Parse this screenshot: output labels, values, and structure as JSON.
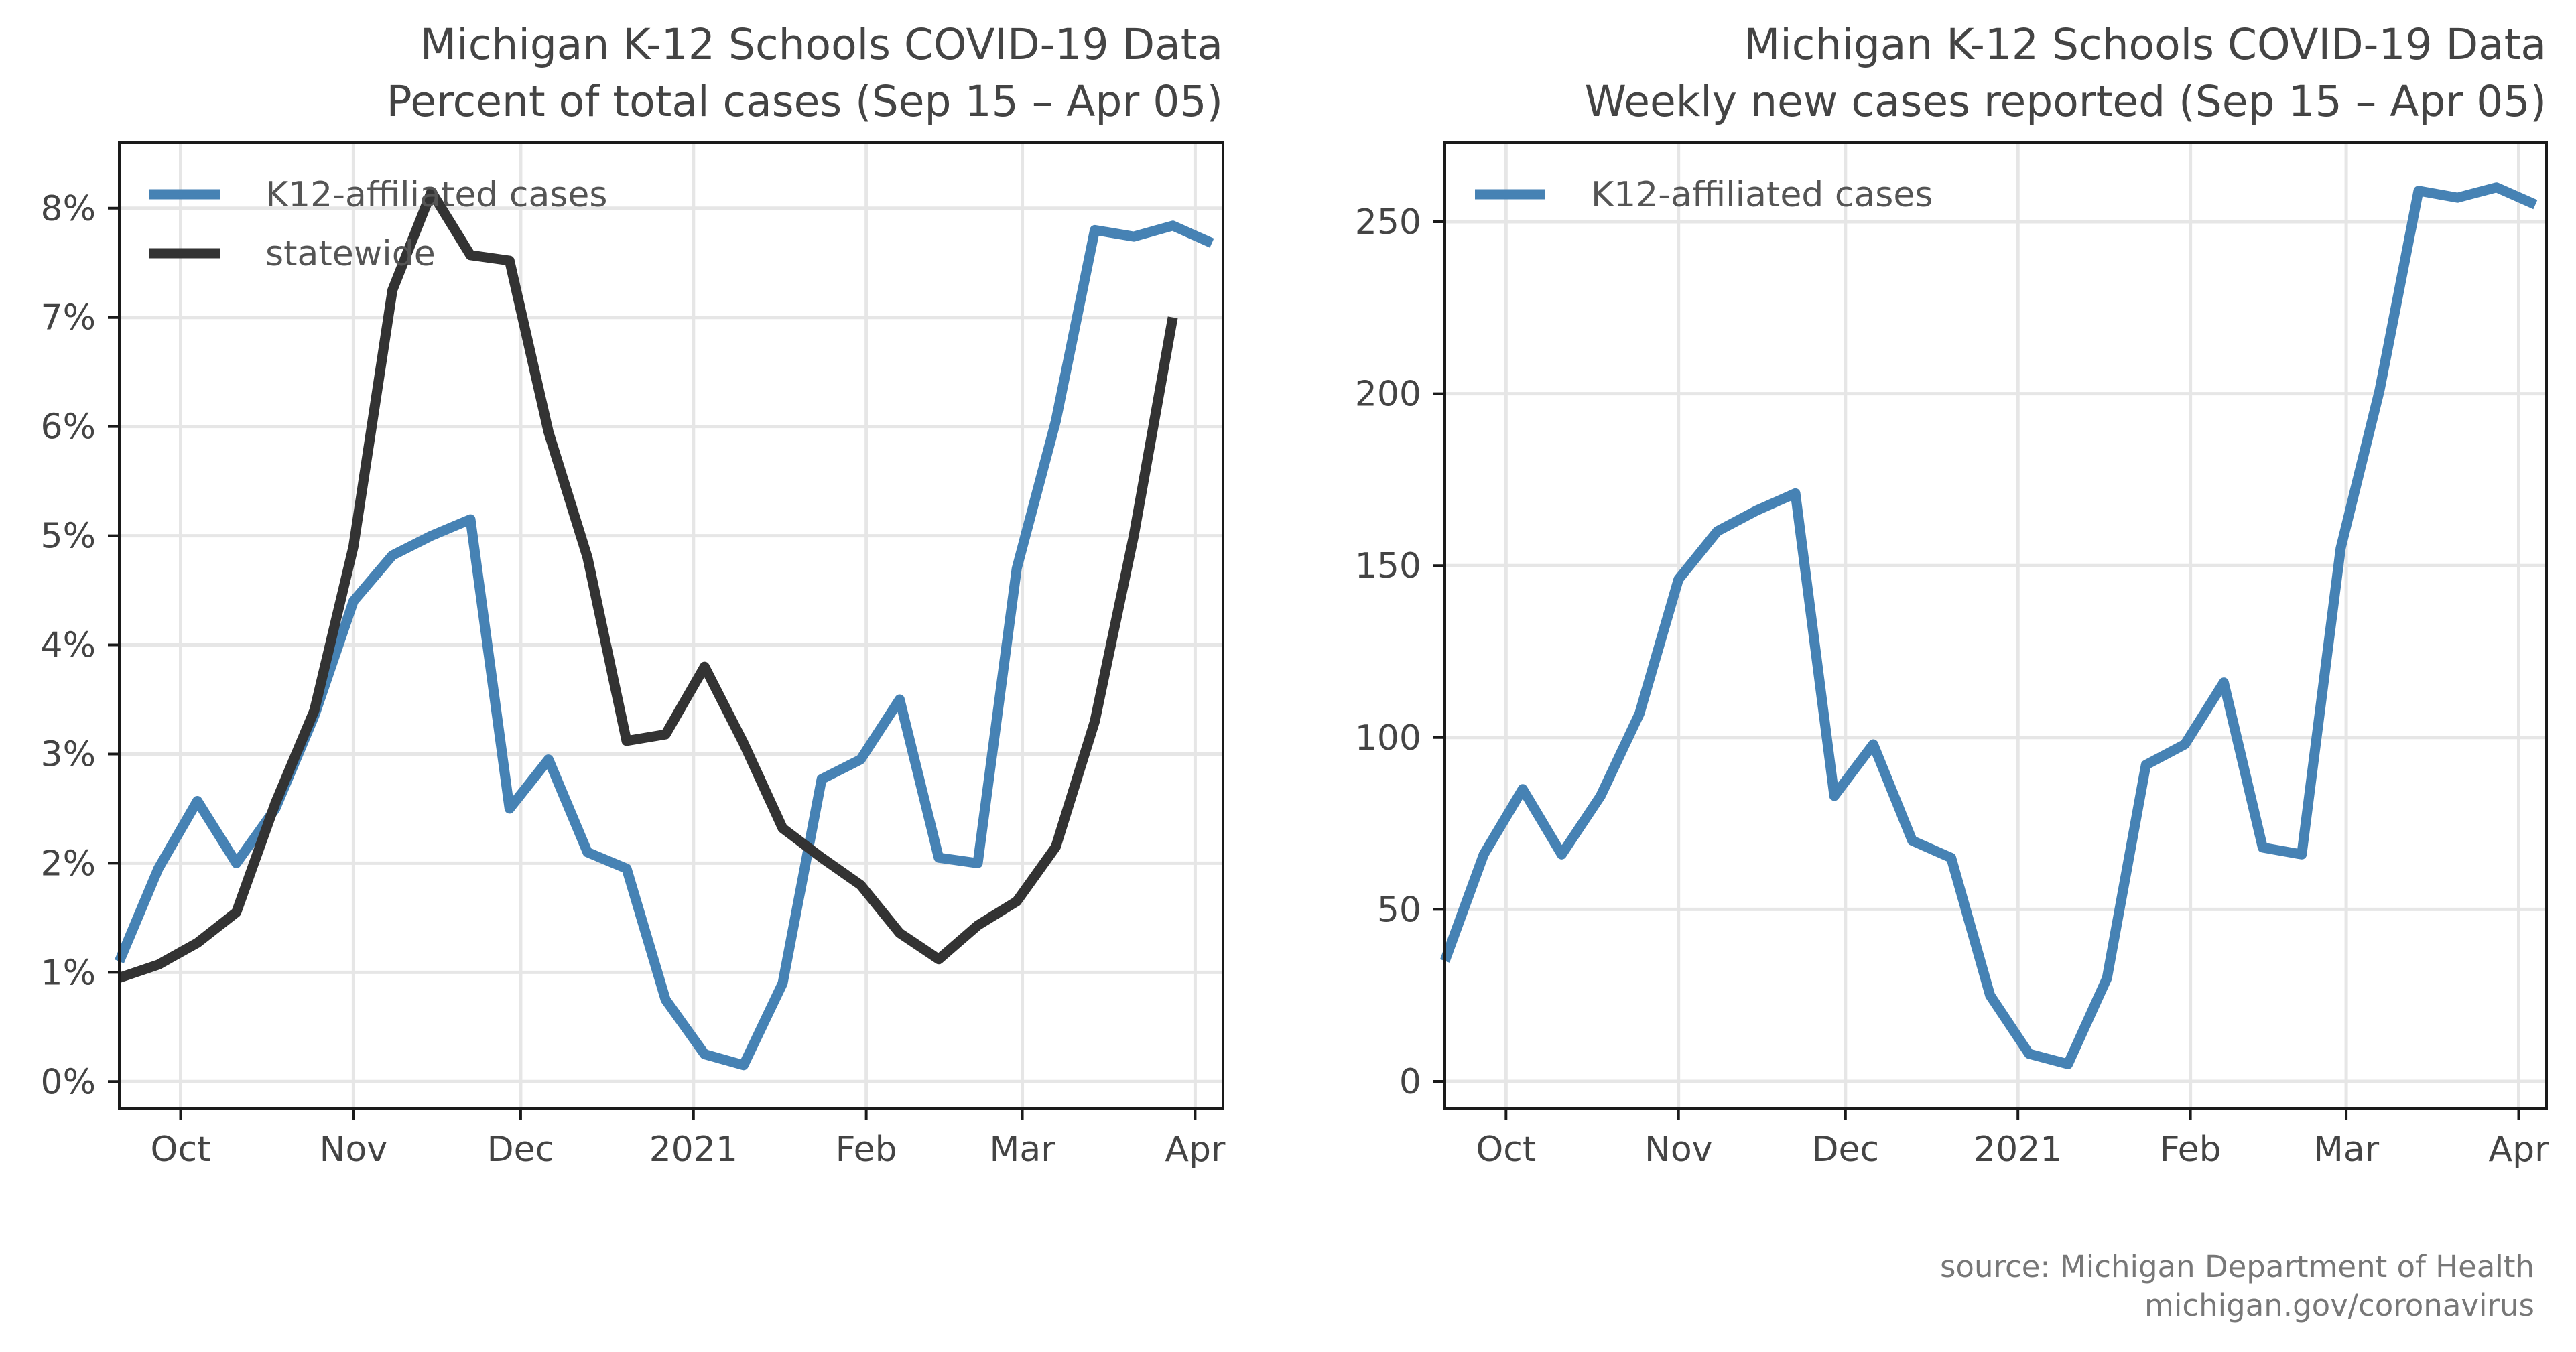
{
  "colors": {
    "k12": "#4682b4",
    "statewide": "#333333",
    "grid": "#e6e6e6",
    "text": "#444444"
  },
  "source": {
    "line1": "source: Michigan Department of Health",
    "line2": "michigan.gov/coronavirus"
  },
  "chart_data": [
    {
      "type": "line",
      "title": "Michigan K-12 Schools COVID-19 Data",
      "subtitle": "Percent of total cases (Sep 15 – Apr 05)",
      "xlabel": "",
      "ylabel": "",
      "x_ticks": [
        {
          "label": "Oct",
          "date": "2020-10-01"
        },
        {
          "label": "Nov",
          "date": "2020-11-01"
        },
        {
          "label": "Dec",
          "date": "2020-12-01"
        },
        {
          "label": "2021",
          "date": "2021-01-01"
        },
        {
          "label": "Feb",
          "date": "2021-02-01"
        },
        {
          "label": "Mar",
          "date": "2021-03-01"
        },
        {
          "label": "Apr",
          "date": "2021-04-01"
        }
      ],
      "xlim": [
        "2020-09-20",
        "2021-04-06"
      ],
      "y_ticks": [
        {
          "label": "0%",
          "value": 0
        },
        {
          "label": "1%",
          "value": 1
        },
        {
          "label": "2%",
          "value": 2
        },
        {
          "label": "3%",
          "value": 3
        },
        {
          "label": "4%",
          "value": 4
        },
        {
          "label": "5%",
          "value": 5
        },
        {
          "label": "6%",
          "value": 6
        },
        {
          "label": "7%",
          "value": 7
        },
        {
          "label": "8%",
          "value": 8
        }
      ],
      "ylim": [
        -0.25,
        8.6
      ],
      "grid": true,
      "legend_position": "top-left",
      "series": [
        {
          "name": "K12-affiliated cases",
          "color": "#4682b4",
          "x": [
            "2020-09-20",
            "2020-09-27",
            "2020-10-04",
            "2020-10-11",
            "2020-10-18",
            "2020-10-25",
            "2020-11-01",
            "2020-11-08",
            "2020-11-15",
            "2020-11-22",
            "2020-11-29",
            "2020-12-06",
            "2020-12-13",
            "2020-12-20",
            "2020-12-27",
            "2021-01-03",
            "2021-01-10",
            "2021-01-17",
            "2021-01-24",
            "2021-01-31",
            "2021-02-07",
            "2021-02-14",
            "2021-02-21",
            "2021-02-28",
            "2021-03-07",
            "2021-03-14",
            "2021-03-21",
            "2021-03-28",
            "2021-04-04"
          ],
          "y": [
            1.1,
            1.95,
            2.57,
            2.0,
            2.5,
            3.35,
            4.4,
            4.82,
            5.0,
            5.15,
            2.5,
            2.95,
            2.1,
            1.95,
            0.75,
            0.25,
            0.15,
            0.9,
            2.77,
            2.95,
            3.5,
            2.05,
            2.0,
            4.7,
            6.05,
            7.8,
            7.74,
            7.84,
            7.68
          ]
        },
        {
          "name": "statewide",
          "color": "#333333",
          "x": [
            "2020-09-20",
            "2020-09-27",
            "2020-10-04",
            "2020-10-11",
            "2020-10-18",
            "2020-10-25",
            "2020-11-01",
            "2020-11-08",
            "2020-11-15",
            "2020-11-22",
            "2020-11-29",
            "2020-12-06",
            "2020-12-13",
            "2020-12-20",
            "2020-12-27",
            "2021-01-03",
            "2021-01-10",
            "2021-01-17",
            "2021-01-24",
            "2021-01-31",
            "2021-02-07",
            "2021-02-14",
            "2021-02-21",
            "2021-02-28",
            "2021-03-07",
            "2021-03-14",
            "2021-03-21",
            "2021-03-28"
          ],
          "y": [
            0.95,
            1.07,
            1.27,
            1.55,
            2.55,
            3.4,
            4.9,
            7.25,
            8.15,
            7.57,
            7.52,
            5.95,
            4.8,
            3.12,
            3.18,
            3.8,
            3.1,
            2.32,
            2.05,
            1.8,
            1.36,
            1.12,
            1.43,
            1.65,
            2.15,
            3.3,
            5.0,
            7.0
          ]
        }
      ]
    },
    {
      "type": "line",
      "title": "Michigan K-12 Schools COVID-19 Data",
      "subtitle": "Weekly new cases reported (Sep 15 – Apr 05)",
      "xlabel": "",
      "ylabel": "",
      "x_ticks": [
        {
          "label": "Oct",
          "date": "2020-10-01"
        },
        {
          "label": "Nov",
          "date": "2020-11-01"
        },
        {
          "label": "Dec",
          "date": "2020-12-01"
        },
        {
          "label": "2021",
          "date": "2021-01-01"
        },
        {
          "label": "Feb",
          "date": "2021-02-01"
        },
        {
          "label": "Mar",
          "date": "2021-03-01"
        },
        {
          "label": "Apr",
          "date": "2021-04-01"
        }
      ],
      "xlim": [
        "2020-09-20",
        "2021-04-06"
      ],
      "y_ticks": [
        {
          "label": "0",
          "value": 0
        },
        {
          "label": "50",
          "value": 50
        },
        {
          "label": "100",
          "value": 100
        },
        {
          "label": "150",
          "value": 150
        },
        {
          "label": "200",
          "value": 200
        },
        {
          "label": "250",
          "value": 250
        }
      ],
      "ylim": [
        -8,
        273
      ],
      "grid": true,
      "legend_position": "top-left",
      "series": [
        {
          "name": "K12-affiliated cases",
          "color": "#4682b4",
          "x": [
            "2020-09-20",
            "2020-09-27",
            "2020-10-04",
            "2020-10-11",
            "2020-10-18",
            "2020-10-25",
            "2020-11-01",
            "2020-11-08",
            "2020-11-15",
            "2020-11-22",
            "2020-11-29",
            "2020-12-06",
            "2020-12-13",
            "2020-12-20",
            "2020-12-27",
            "2021-01-03",
            "2021-01-10",
            "2021-01-17",
            "2021-01-24",
            "2021-01-31",
            "2021-02-07",
            "2021-02-14",
            "2021-02-21",
            "2021-02-28",
            "2021-03-07",
            "2021-03-14",
            "2021-03-21",
            "2021-03-28",
            "2021-04-04"
          ],
          "y": [
            35,
            66,
            85,
            66,
            83,
            107,
            146,
            160,
            166,
            171,
            83,
            98,
            70,
            65,
            25,
            8,
            5,
            30,
            92,
            98,
            116,
            68,
            66,
            155,
            201,
            259,
            257,
            260,
            255
          ]
        }
      ]
    }
  ]
}
